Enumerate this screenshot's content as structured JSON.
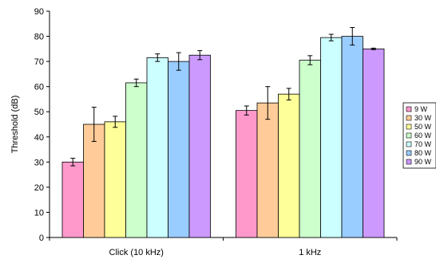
{
  "chart_data": {
    "type": "bar",
    "title": "",
    "xlabel": "",
    "ylabel": "Threshold (dB)",
    "ylim": [
      0,
      90
    ],
    "yticks": [
      0,
      10,
      20,
      30,
      40,
      50,
      60,
      70,
      80,
      90
    ],
    "categories": [
      "Click (10 kHz)",
      "1 kHz"
    ],
    "grid": false,
    "legend_position": "right",
    "series": [
      {
        "name": "9 W",
        "color": "#FF99CC",
        "values": [
          30,
          50.5
        ],
        "errors": [
          1.5,
          1.8
        ]
      },
      {
        "name": "30 W",
        "color": "#FFCC99",
        "values": [
          45,
          53.5
        ],
        "errors": [
          6.8,
          6.5
        ]
      },
      {
        "name": "50 W",
        "color": "#FFFF99",
        "values": [
          46,
          57
        ],
        "errors": [
          2.2,
          2.3
        ]
      },
      {
        "name": "60 W",
        "color": "#CCFFCC",
        "values": [
          61.5,
          70.5
        ],
        "errors": [
          1.5,
          1.8
        ]
      },
      {
        "name": "70 W",
        "color": "#CCFFFF",
        "values": [
          71.5,
          79.5
        ],
        "errors": [
          1.5,
          1.3
        ]
      },
      {
        "name": "80 W",
        "color": "#99CCFF",
        "values": [
          70,
          80
        ],
        "errors": [
          3.5,
          3.5
        ]
      },
      {
        "name": "90 W",
        "color": "#CC99FF",
        "values": [
          72.5,
          75
        ],
        "errors": [
          1.8,
          0.3
        ]
      }
    ]
  }
}
